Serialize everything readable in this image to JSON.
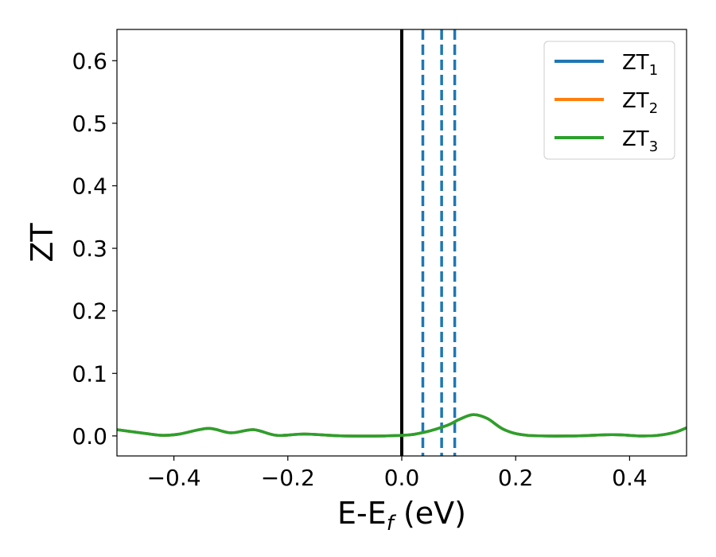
{
  "chart_data": {
    "type": "line",
    "xlabel": "E-E",
    "xlabel_sub": "f",
    "xlabel_unit": " (eV)",
    "ylabel": "ZT",
    "xlim": [
      -0.5,
      0.5
    ],
    "ylim": [
      -0.032,
      0.65
    ],
    "x_ticks": [
      -0.4,
      -0.2,
      0.0,
      0.2,
      0.4
    ],
    "x_tick_labels": [
      "−0.4",
      "−0.2",
      "0.0",
      "0.2",
      "0.4"
    ],
    "y_ticks": [
      0.0,
      0.1,
      0.2,
      0.3,
      0.4,
      0.5,
      0.6
    ],
    "y_tick_labels": [
      "0.0",
      "0.1",
      "0.2",
      "0.3",
      "0.4",
      "0.5",
      "0.6"
    ],
    "grid": false,
    "legend_position": "top-right",
    "series": [
      {
        "name": "ZT",
        "name_sub": "1",
        "color": "#1f77b4",
        "x": [
          -0.5,
          -0.45,
          -0.42,
          -0.39,
          -0.34,
          -0.3,
          -0.26,
          -0.22,
          -0.17,
          -0.1,
          0.0,
          0.04,
          0.08,
          0.1,
          0.125,
          0.15,
          0.18,
          0.22,
          0.3,
          0.37,
          0.42,
          0.45,
          0.48,
          0.5
        ],
        "y": [
          0.01,
          0.004,
          0.001,
          0.003,
          0.012,
          0.005,
          0.01,
          0.001,
          0.003,
          0.0,
          0.001,
          0.006,
          0.017,
          0.026,
          0.034,
          0.028,
          0.01,
          0.001,
          0.0,
          0.002,
          0.0,
          0.001,
          0.006,
          0.013
        ]
      },
      {
        "name": "ZT",
        "name_sub": "2",
        "color": "#ff7f0e",
        "x": [
          -0.5,
          -0.45,
          -0.42,
          -0.39,
          -0.34,
          -0.3,
          -0.26,
          -0.22,
          -0.17,
          -0.1,
          0.0,
          0.04,
          0.08,
          0.1,
          0.125,
          0.15,
          0.18,
          0.22,
          0.3,
          0.37,
          0.42,
          0.45,
          0.48,
          0.5
        ],
        "y": [
          0.01,
          0.004,
          0.001,
          0.003,
          0.012,
          0.005,
          0.01,
          0.001,
          0.003,
          0.0,
          0.001,
          0.006,
          0.017,
          0.026,
          0.034,
          0.028,
          0.01,
          0.001,
          0.0,
          0.002,
          0.0,
          0.001,
          0.006,
          0.013
        ]
      },
      {
        "name": "ZT",
        "name_sub": "3",
        "color": "#2ca02c",
        "x": [
          -0.5,
          -0.45,
          -0.42,
          -0.39,
          -0.34,
          -0.3,
          -0.26,
          -0.22,
          -0.17,
          -0.1,
          0.0,
          0.04,
          0.08,
          0.1,
          0.125,
          0.15,
          0.18,
          0.22,
          0.3,
          0.37,
          0.42,
          0.45,
          0.48,
          0.5
        ],
        "y": [
          0.01,
          0.004,
          0.001,
          0.003,
          0.012,
          0.005,
          0.01,
          0.001,
          0.003,
          0.0,
          0.001,
          0.006,
          0.017,
          0.026,
          0.034,
          0.028,
          0.01,
          0.001,
          0.0,
          0.002,
          0.0,
          0.001,
          0.006,
          0.013
        ]
      }
    ],
    "vertical_lines": [
      {
        "x": 0.0,
        "style": "solid",
        "color": "#000000"
      },
      {
        "x": 0.037,
        "style": "dashed",
        "color": "#1f77b4"
      },
      {
        "x": 0.07,
        "style": "dashed",
        "color": "#1f77b4"
      },
      {
        "x": 0.093,
        "style": "dashed",
        "color": "#1f77b4"
      }
    ]
  }
}
